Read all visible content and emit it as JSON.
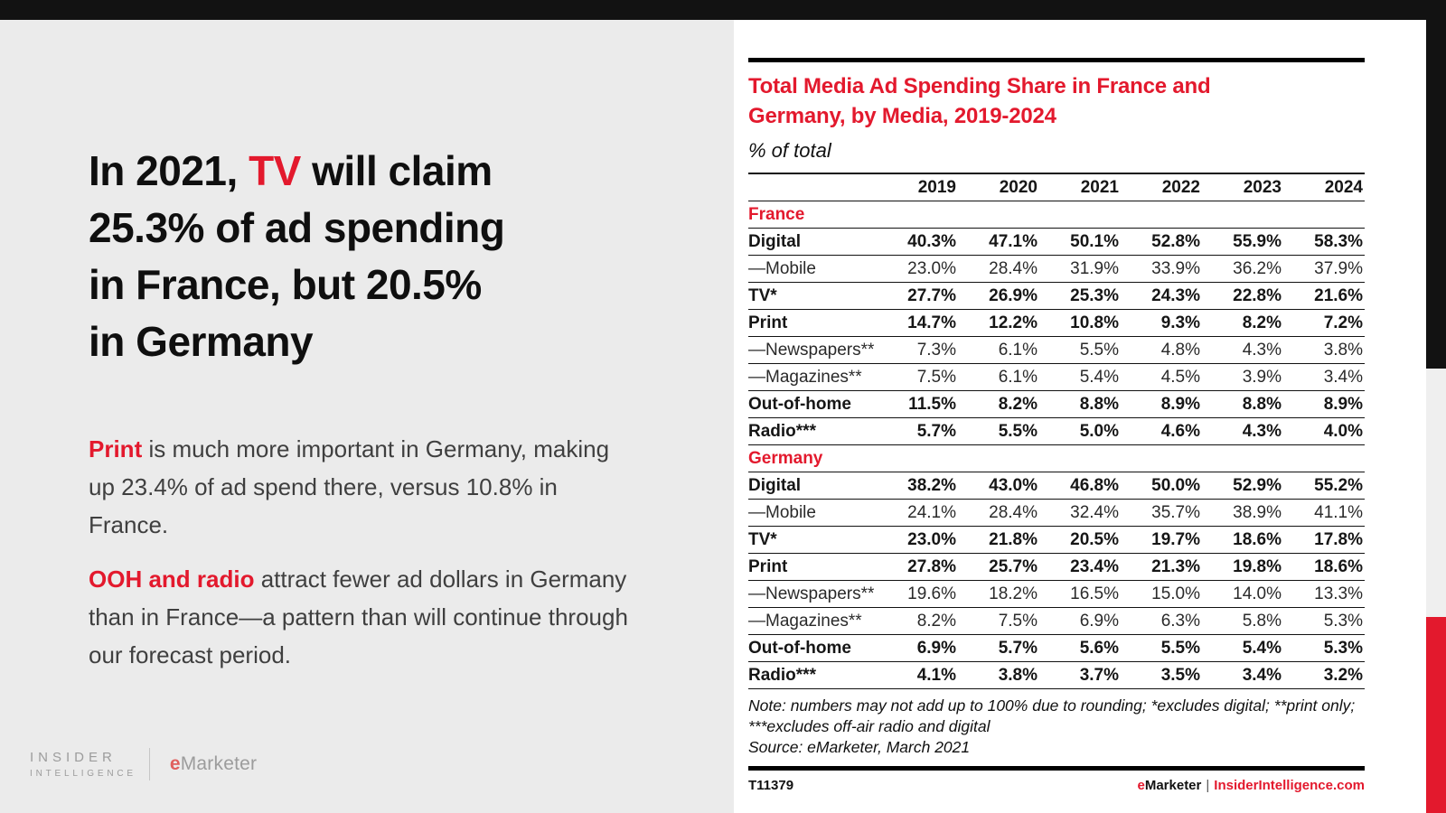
{
  "page": {
    "headline": {
      "line1_pre": "In 2021, ",
      "line1_highlight": "TV",
      "line1_post": " will claim",
      "line2": "25.3% of ad spending",
      "line3": "in France, but 20.5%",
      "line4": "in Germany"
    },
    "paragraphs": [
      {
        "lead": "Print",
        "rest": " is much more important in Germany, making up 23.4% of ad spend there, versus 10.8% in France."
      },
      {
        "lead": "OOH and radio",
        "rest": " attract fewer ad dollars in Germany than in France—a pattern than will continue through our forecast period."
      }
    ],
    "brand": {
      "insider_top": "INSIDER",
      "insider_bottom": "INTELLIGENCE",
      "emarketer_e": "e",
      "emarketer_rest": "Marketer"
    },
    "footer": {
      "chart_id": "T11379",
      "emarketer_e": "e",
      "emarketer_rest": "Marketer",
      "separator": "|",
      "site": "InsiderIntelligence.com"
    },
    "colors": {
      "accent_red": "#e3192d",
      "bar_black": "#121212",
      "left_panel_gray": "#ebebeb",
      "side_strip_gray": "#efefef",
      "logo_gray": "#9c9c9c",
      "logo_red": "#e0605e",
      "body_text": "#3f3f3f"
    }
  },
  "chart_data": {
    "type": "table",
    "title_line1": "Total Media Ad Spending Share in France and",
    "title_line2": "Germany, by Media, 2019-2024",
    "subtitle": "% of total",
    "columns": [
      "2019",
      "2020",
      "2021",
      "2022",
      "2023",
      "2024"
    ],
    "sections": [
      {
        "label": "France",
        "rows": [
          {
            "label": "Digital",
            "bold": true,
            "values": [
              "40.3%",
              "47.1%",
              "50.1%",
              "52.8%",
              "55.9%",
              "58.3%"
            ]
          },
          {
            "label": "—Mobile",
            "bold": false,
            "values": [
              "23.0%",
              "28.4%",
              "31.9%",
              "33.9%",
              "36.2%",
              "37.9%"
            ]
          },
          {
            "label": "TV*",
            "bold": true,
            "values": [
              "27.7%",
              "26.9%",
              "25.3%",
              "24.3%",
              "22.8%",
              "21.6%"
            ]
          },
          {
            "label": "Print",
            "bold": true,
            "values": [
              "14.7%",
              "12.2%",
              "10.8%",
              "9.3%",
              "8.2%",
              "7.2%"
            ]
          },
          {
            "label": "—Newspapers**",
            "bold": false,
            "values": [
              "7.3%",
              "6.1%",
              "5.5%",
              "4.8%",
              "4.3%",
              "3.8%"
            ]
          },
          {
            "label": "—Magazines**",
            "bold": false,
            "values": [
              "7.5%",
              "6.1%",
              "5.4%",
              "4.5%",
              "3.9%",
              "3.4%"
            ]
          },
          {
            "label": "Out-of-home",
            "bold": true,
            "values": [
              "11.5%",
              "8.2%",
              "8.8%",
              "8.9%",
              "8.8%",
              "8.9%"
            ]
          },
          {
            "label": "Radio***",
            "bold": true,
            "values": [
              "5.7%",
              "5.5%",
              "5.0%",
              "4.6%",
              "4.3%",
              "4.0%"
            ]
          }
        ]
      },
      {
        "label": "Germany",
        "rows": [
          {
            "label": "Digital",
            "bold": true,
            "values": [
              "38.2%",
              "43.0%",
              "46.8%",
              "50.0%",
              "52.9%",
              "55.2%"
            ]
          },
          {
            "label": "—Mobile",
            "bold": false,
            "values": [
              "24.1%",
              "28.4%",
              "32.4%",
              "35.7%",
              "38.9%",
              "41.1%"
            ]
          },
          {
            "label": "TV*",
            "bold": true,
            "values": [
              "23.0%",
              "21.8%",
              "20.5%",
              "19.7%",
              "18.6%",
              "17.8%"
            ]
          },
          {
            "label": "Print",
            "bold": true,
            "values": [
              "27.8%",
              "25.7%",
              "23.4%",
              "21.3%",
              "19.8%",
              "18.6%"
            ]
          },
          {
            "label": "—Newspapers**",
            "bold": false,
            "values": [
              "19.6%",
              "18.2%",
              "16.5%",
              "15.0%",
              "14.0%",
              "13.3%"
            ]
          },
          {
            "label": "—Magazines**",
            "bold": false,
            "values": [
              "8.2%",
              "7.5%",
              "6.9%",
              "6.3%",
              "5.8%",
              "5.3%"
            ]
          },
          {
            "label": "Out-of-home",
            "bold": true,
            "values": [
              "6.9%",
              "5.7%",
              "5.6%",
              "5.5%",
              "5.4%",
              "5.3%"
            ]
          },
          {
            "label": "Radio***",
            "bold": true,
            "values": [
              "4.1%",
              "3.8%",
              "3.7%",
              "3.5%",
              "3.4%",
              "3.2%"
            ]
          }
        ]
      }
    ],
    "note": "Note: numbers may not add up to 100% due to rounding; *excludes digital; **print only; ***excludes off-air radio and digital",
    "source": "Source: eMarketer, March 2021"
  }
}
